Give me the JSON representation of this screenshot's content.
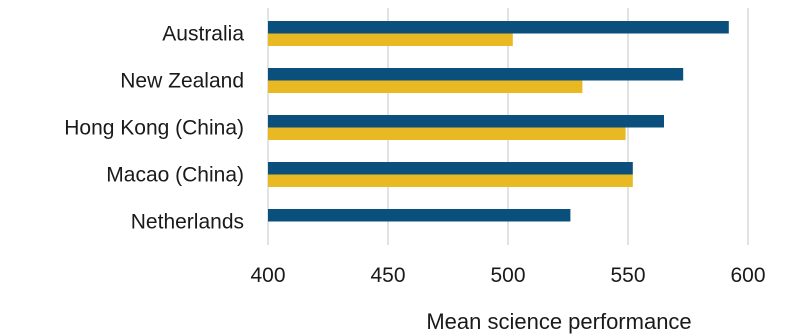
{
  "chart_data": {
    "type": "bar",
    "orientation": "horizontal",
    "categories": [
      "Australia",
      "New Zealand",
      "Hong Kong (China)",
      "Macao (China)",
      "Netherlands"
    ],
    "series": [
      {
        "color": "#0b4f7c",
        "values": [
          592,
          573,
          565,
          552,
          526
        ]
      },
      {
        "color": "#e8b923",
        "values": [
          502,
          531,
          549,
          552,
          null
        ]
      }
    ],
    "xlabel": "Mean science performance",
    "xlim": [
      400,
      600
    ],
    "xticks": [
      400,
      450,
      500,
      550,
      600
    ],
    "grid": true,
    "legend": "none"
  }
}
